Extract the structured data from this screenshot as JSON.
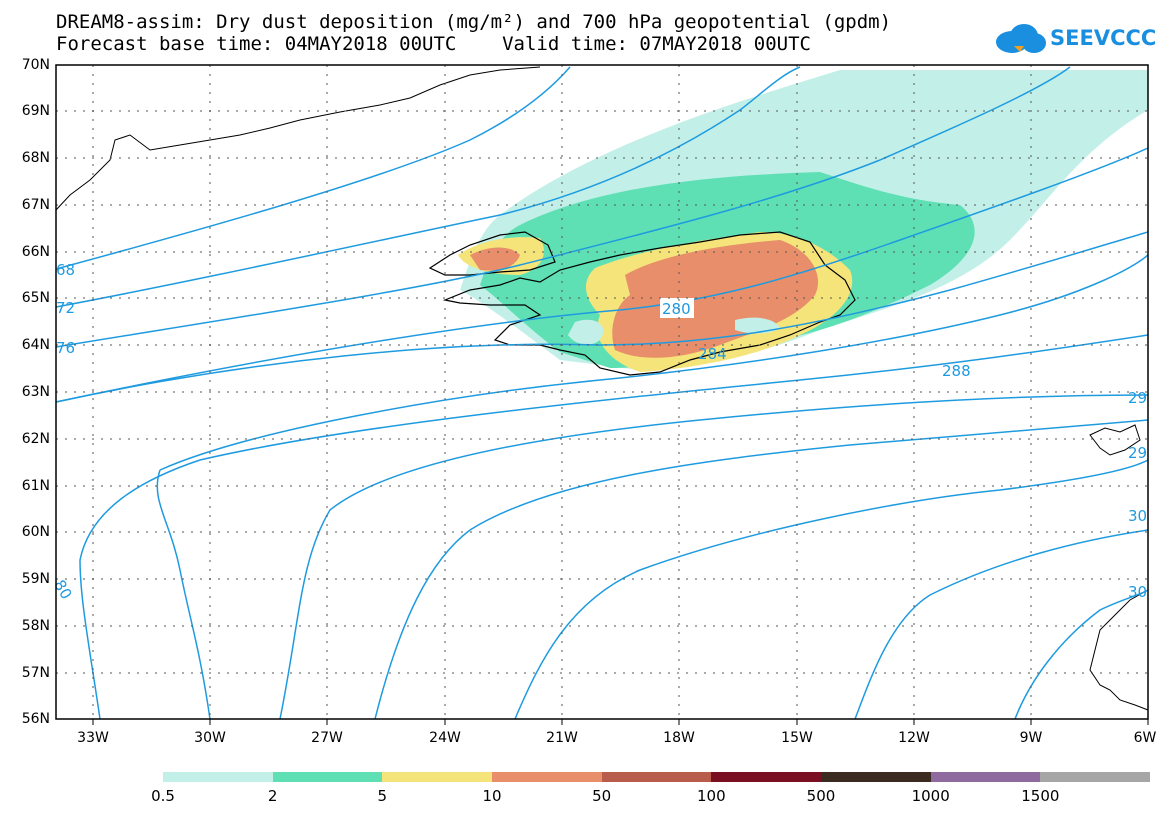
{
  "title": {
    "line1": "DREAM8-assim: Dry dust deposition (mg/m²) and 700 hPa geopotential (gpdm)",
    "line2": "Forecast base time: 04MAY2018 00UTC    Valid time: 07MAY2018 00UTC"
  },
  "logo": {
    "text": "SEEVCCC",
    "icon": "cloud-icon"
  },
  "lat_labels": [
    "70N",
    "69N",
    "68N",
    "67N",
    "66N",
    "65N",
    "64N",
    "63N",
    "62N",
    "61N",
    "60N",
    "59N",
    "58N",
    "57N",
    "56N"
  ],
  "lon_labels": [
    "33W",
    "30W",
    "27W",
    "24W",
    "21W",
    "18W",
    "15W",
    "12W",
    "9W",
    "6W"
  ],
  "contour_labels": [
    "68",
    "72",
    "76",
    "280",
    "284",
    "288",
    "29",
    "29",
    "30",
    "30",
    "80"
  ],
  "legend": {
    "colors": [
      "#c2f0e8",
      "#5ee0b4",
      "#f5e47a",
      "#e88e6a",
      "#b85c4c",
      "#7a0f22",
      "#3a2a20",
      "#8e6a9e",
      "#a6a6a6"
    ],
    "labels": [
      "0.5",
      "2",
      "5",
      "10",
      "50",
      "100",
      "500",
      "1000",
      "1500"
    ]
  },
  "colors": {
    "contour": "#1e9be0",
    "frame": "#000000",
    "grid": "#555555"
  }
}
